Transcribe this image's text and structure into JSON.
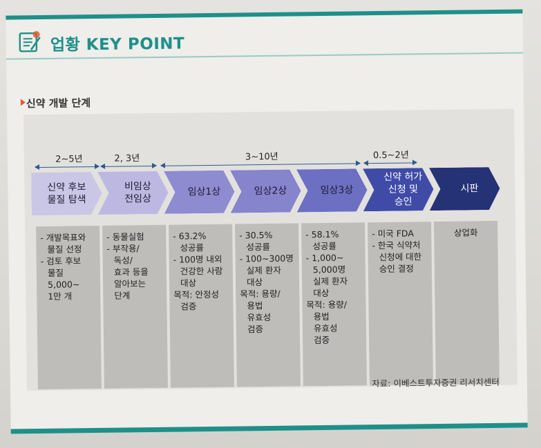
{
  "header": {
    "title": "업황 KEY POINT",
    "icon": "notebook-pencil-icon"
  },
  "section": {
    "title": "신약 개발 단계"
  },
  "durations": [
    {
      "label": "2~5년"
    },
    {
      "label": "2, 3년"
    },
    {
      "label": "3~10년"
    },
    {
      "label": "0.5~2년"
    }
  ],
  "stages": [
    {
      "lines": [
        "신약 후보",
        "물질 탐색"
      ]
    },
    {
      "lines": [
        "비임상",
        "전임상"
      ]
    },
    {
      "lines": [
        "임상1상"
      ]
    },
    {
      "lines": [
        "임상2상"
      ]
    },
    {
      "lines": [
        "임상3상"
      ]
    },
    {
      "lines": [
        "신약 허가",
        "신청 및",
        "승인"
      ]
    },
    {
      "lines": [
        "시판"
      ]
    }
  ],
  "details": [
    {
      "lines": [
        "- 개발목표와",
        "  물질 선정",
        "- 검토 후보",
        "  물질",
        "  5,000~",
        "  1만 개"
      ]
    },
    {
      "lines": [
        "- 동물실험",
        "- 부작용/",
        "  독성/",
        "  효과 등을",
        "  알아보는",
        "  단계"
      ]
    },
    {
      "lines": [
        "- 63.2%",
        "  성공률",
        "- 100명 내외",
        "  건강한 사람",
        "  대상",
        "목적: 안정성",
        "  검증"
      ]
    },
    {
      "lines": [
        "- 30.5%",
        "  성공률",
        "- 100~300명",
        "  실제 환자",
        "  대상",
        "목적: 용량/",
        "  용법",
        "  유효성",
        "  검증"
      ]
    },
    {
      "lines": [
        "- 58.1%",
        "  성공률",
        "- 1,000~",
        "  5,000명",
        "  실제 환자",
        "  대상",
        "목적: 용량/",
        "  용법",
        "  유효성",
        "  검증"
      ]
    },
    {
      "lines": [
        "- 미국 FDA",
        "- 한국 식약처",
        "  신청에 대한",
        "  승인 결정"
      ]
    },
    {
      "lines": [
        "상업화"
      ]
    }
  ],
  "source": "자료: 이베스트투자증권 리서치센터",
  "colors": {
    "teal": "#1f8f8a",
    "stage_fills": [
      "#c9c6e6",
      "#bdb8e2",
      "#8f8bd0",
      "#8684cd",
      "#6c6fc2",
      "#3f4ba7",
      "#253276"
    ],
    "accent": "#e05a2b"
  }
}
